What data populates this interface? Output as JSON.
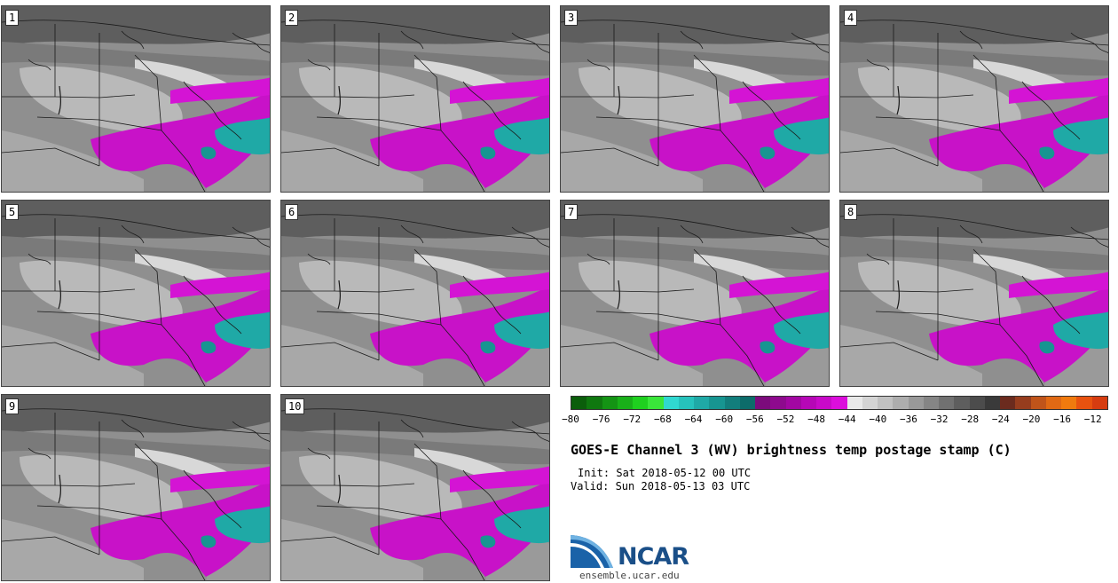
{
  "panels": [
    {
      "label": "1"
    },
    {
      "label": "2"
    },
    {
      "label": "3"
    },
    {
      "label": "4"
    },
    {
      "label": "5"
    },
    {
      "label": "6"
    },
    {
      "label": "7"
    },
    {
      "label": "8"
    },
    {
      "label": "9"
    },
    {
      "label": "10"
    }
  ],
  "colorbar": {
    "colors": [
      "#0b5e0b",
      "#0f780f",
      "#149414",
      "#19b019",
      "#1fd01f",
      "#3ae63a",
      "#30d8d0",
      "#26c2bc",
      "#1fa9a6",
      "#179591",
      "#127e7c",
      "#0d6c6a",
      "#7c0b7c",
      "#8e0a8e",
      "#a207a2",
      "#b607b6",
      "#c80ac8",
      "#dc0edc",
      "#e9e9e9",
      "#d4d4d4",
      "#c1c1c1",
      "#adadad",
      "#999999",
      "#858585",
      "#717171",
      "#5e5e5e",
      "#4c4c4c",
      "#3a3a3a",
      "#6b2b1e",
      "#973d1e",
      "#c0541a",
      "#e06914",
      "#f07a0e",
      "#e8520f",
      "#d63c10"
    ],
    "ticks": [
      "-80",
      "-76",
      "-72",
      "-68",
      "-64",
      "-60",
      "-56",
      "-52",
      "-48",
      "-44",
      "-40",
      "-36",
      "-32",
      "-28",
      "-24",
      "-20",
      "-16",
      "-12"
    ]
  },
  "title": "GOES-E Channel 3 (WV) brightness temp postage stamp (C)",
  "init": "Init: Sat 2018-05-12 00 UTC",
  "valid": "Valid: Sun 2018-05-13 03 UTC",
  "logo": {
    "text": "NCAR",
    "url": "ensemble.ucar.edu"
  }
}
